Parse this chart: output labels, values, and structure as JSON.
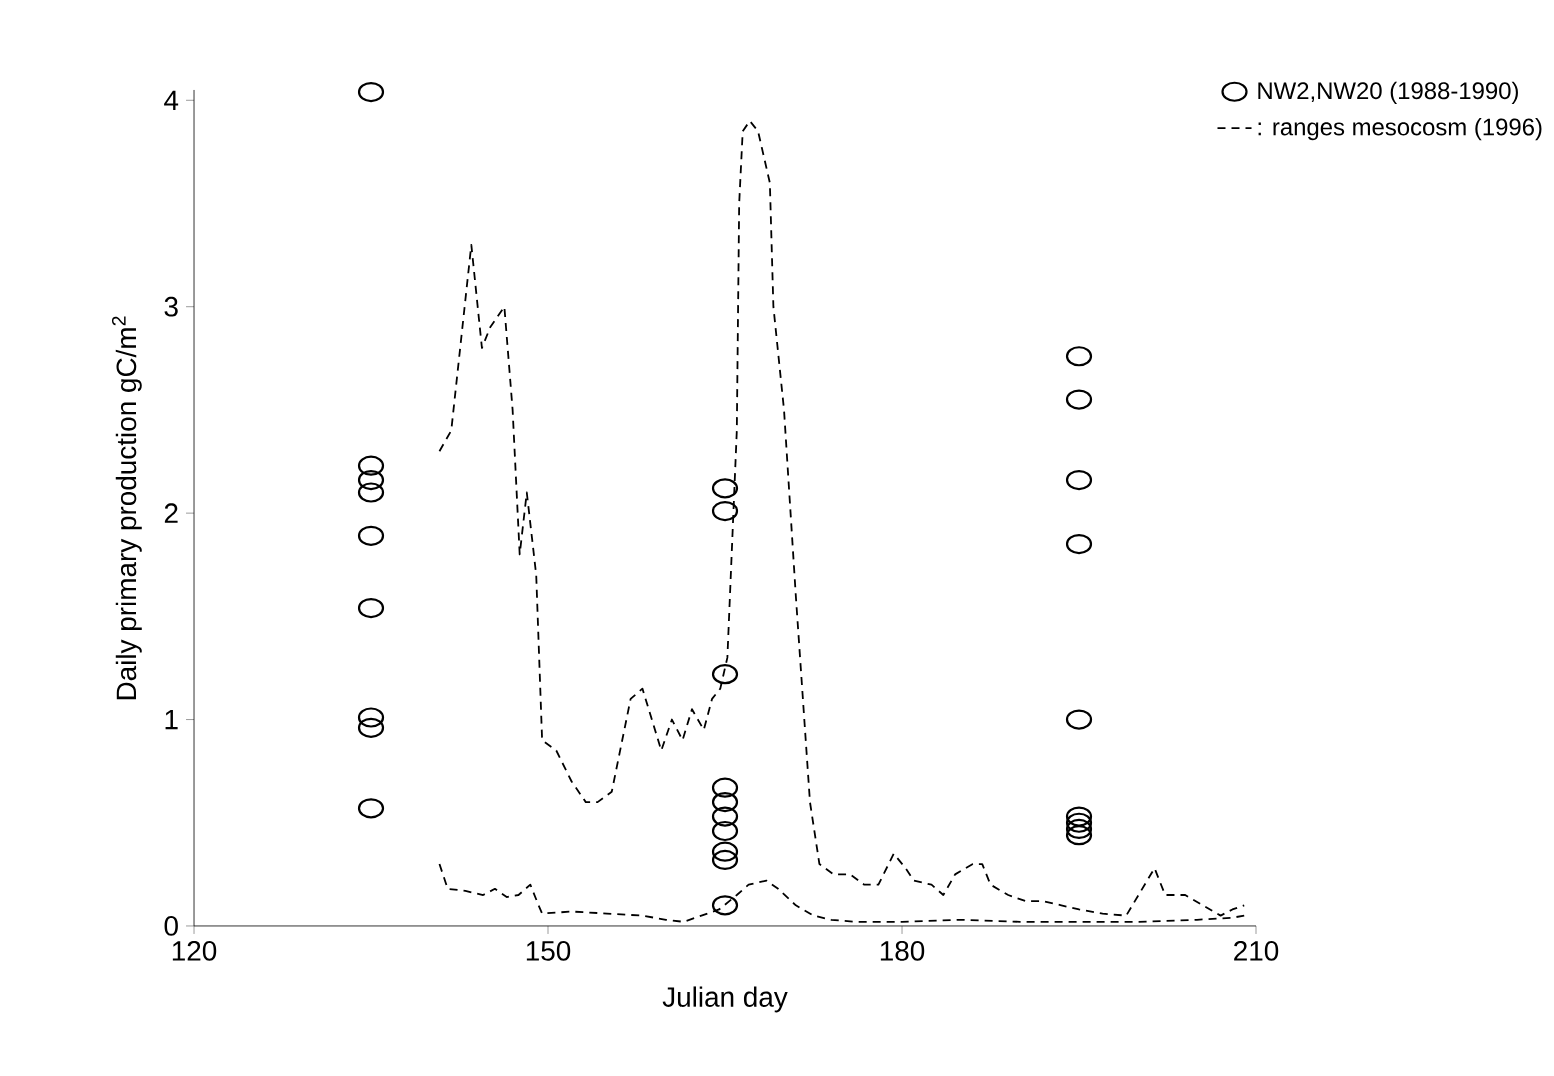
{
  "chart_data": {
    "type": "scatter",
    "xlabel": "Julian day",
    "ylabel": "Daily primary production gC/m$^{2}$",
    "xlim": [
      120,
      210
    ],
    "xticks": [
      120,
      150,
      180,
      210
    ],
    "ylim": [
      0,
      4.05
    ],
    "yticks": [
      0,
      1,
      2,
      3,
      4
    ],
    "grid": false,
    "legend": "top right",
    "series": [
      {
        "name": "NW2,NW20 (1988-1990)",
        "marker": "circle",
        "color": "#000000",
        "x": [
          135,
          135,
          135,
          135,
          135,
          135,
          135,
          135,
          135,
          165,
          165,
          165,
          165,
          165,
          165,
          165,
          165,
          165,
          165,
          195,
          195,
          195,
          195,
          195,
          195,
          195,
          195,
          195
        ],
        "values": [
          4.04,
          2.23,
          2.16,
          2.1,
          1.89,
          1.54,
          1.01,
          0.96,
          0.57,
          2.12,
          2.01,
          1.22,
          0.67,
          0.6,
          0.53,
          0.46,
          0.36,
          0.32,
          0.1,
          2.76,
          2.55,
          2.16,
          1.85,
          1.0,
          0.53,
          0.5,
          0.47,
          0.44
        ]
      },
      {
        "name": ": ranges mesocosm (1996)",
        "type": "line",
        "line_style": "dashed",
        "marker": "none",
        "color": "#000000",
        "x": [
          140.8,
          141.8,
          143.5,
          144.4,
          145.1,
          146.3,
          147,
          147.6,
          148.2,
          149,
          149.5,
          150.7,
          152,
          153.2,
          154.2,
          155.4,
          157,
          158,
          158.8,
          159.6,
          160.5,
          161.4,
          162.2,
          163.2,
          163.9,
          164.6,
          165.2,
          165.6,
          166,
          166.2,
          166.5,
          167.1,
          167.8,
          168.8,
          169.1,
          170,
          171,
          172.2,
          173,
          174.2,
          175.6,
          176.8,
          178,
          179.3,
          180.3,
          181,
          182.5,
          183.5,
          184.5,
          186,
          186.8,
          187.5,
          189,
          190.5,
          192,
          193.5,
          195,
          197,
          199,
          201.4,
          202.3,
          204,
          205.5,
          207,
          208,
          209
        ],
        "values": [
          2.3,
          2.4,
          3.3,
          2.8,
          2.9,
          3.0,
          2.5,
          1.8,
          2.1,
          1.7,
          0.9,
          0.85,
          0.7,
          0.6,
          0.6,
          0.65,
          1.1,
          1.15,
          1.0,
          0.85,
          1.0,
          0.9,
          1.05,
          0.95,
          1.1,
          1.15,
          1.3,
          1.85,
          2.4,
          3.5,
          3.85,
          3.9,
          3.85,
          3.6,
          3.0,
          2.5,
          1.6,
          0.6,
          0.3,
          0.25,
          0.25,
          0.2,
          0.2,
          0.35,
          0.28,
          0.22,
          0.2,
          0.15,
          0.25,
          0.3,
          0.3,
          0.2,
          0.15,
          0.12,
          0.12,
          0.1,
          0.08,
          0.06,
          0.05,
          0.28,
          0.15,
          0.15,
          0.1,
          0.05,
          0.08,
          0.1
        ]
      },
      {
        "type": "line",
        "line_style": "dashed",
        "marker": "none",
        "color": "#000000",
        "x": [
          140.8,
          141.5,
          143,
          144.5,
          145.5,
          146.5,
          147.5,
          148.5,
          149.2,
          149.5,
          152,
          155,
          158,
          160,
          161.5,
          163,
          164.5,
          166,
          167,
          168.5,
          169.5,
          171,
          172.5,
          174,
          176,
          180,
          185,
          190,
          195,
          200,
          205,
          208,
          209
        ],
        "values": [
          0.3,
          0.18,
          0.17,
          0.15,
          0.18,
          0.14,
          0.15,
          0.2,
          0.1,
          0.06,
          0.07,
          0.06,
          0.05,
          0.03,
          0.02,
          0.05,
          0.08,
          0.15,
          0.2,
          0.22,
          0.18,
          0.1,
          0.05,
          0.03,
          0.02,
          0.02,
          0.03,
          0.02,
          0.02,
          0.02,
          0.03,
          0.04,
          0.05
        ]
      }
    ]
  }
}
